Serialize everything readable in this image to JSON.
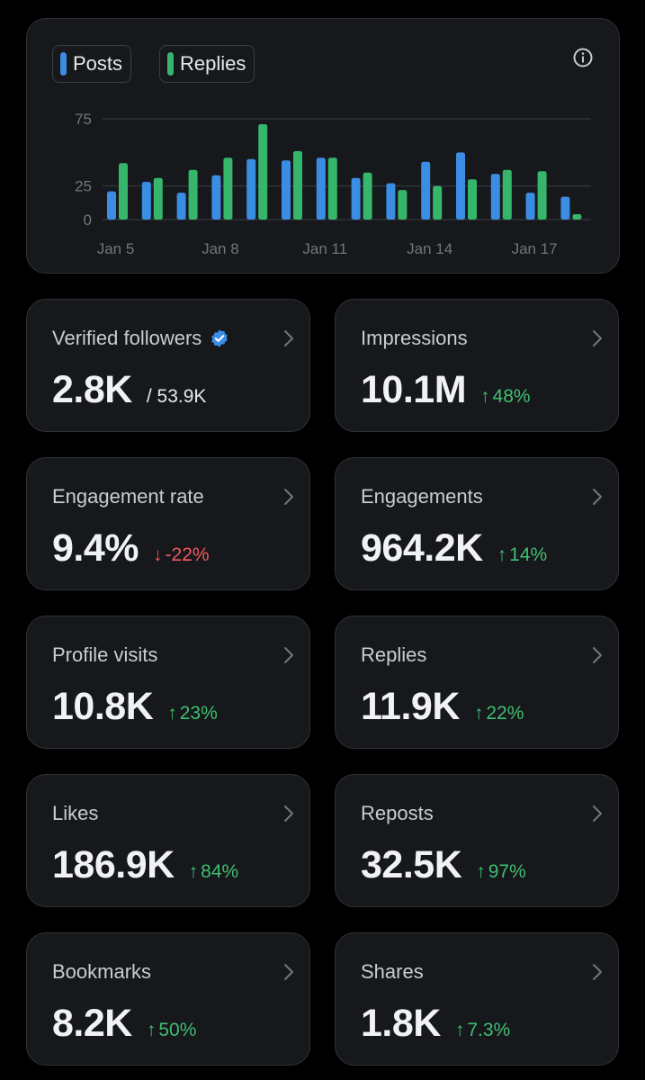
{
  "legend": {
    "posts_label": "Posts",
    "replies_label": "Replies"
  },
  "colors": {
    "posts": "#3b8de4",
    "replies": "#36b66b",
    "background": "#000000",
    "card": "#16181c",
    "positive": "#3fbf71",
    "negative": "#f4575d"
  },
  "chart_data": {
    "type": "bar",
    "categories": [
      "Jan 5",
      "Jan 6",
      "Jan 7",
      "Jan 8",
      "Jan 9",
      "Jan 10",
      "Jan 11",
      "Jan 12",
      "Jan 13",
      "Jan 14",
      "Jan 15",
      "Jan 16",
      "Jan 17",
      "Jan 18"
    ],
    "x_tick_labels": [
      "Jan 5",
      "Jan 8",
      "Jan 11",
      "Jan 14",
      "Jan 17"
    ],
    "y_ticks": [
      0,
      25,
      75
    ],
    "ylim": [
      0,
      75
    ],
    "grid": true,
    "series": [
      {
        "name": "Posts",
        "values": [
          21,
          28,
          20,
          33,
          45,
          44,
          46,
          31,
          27,
          43,
          50,
          34,
          20,
          17
        ]
      },
      {
        "name": "Replies",
        "values": [
          42,
          31,
          37,
          46,
          71,
          51,
          46,
          35,
          22,
          25,
          30,
          37,
          36,
          4
        ]
      }
    ]
  },
  "metrics": [
    {
      "label": "Verified followers",
      "value": "2.8K",
      "sub": "/ 53.9K",
      "verified_icon": "verified-badge-icon"
    },
    {
      "label": "Impressions",
      "value": "10.1M",
      "arrow": "↑",
      "delta": "48%",
      "direction": "up"
    },
    {
      "label": "Engagement rate",
      "value": "9.4%",
      "arrow": "↓",
      "delta": "-22%",
      "direction": "down"
    },
    {
      "label": "Engagements",
      "value": "964.2K",
      "arrow": "↑",
      "delta": "14%",
      "direction": "up"
    },
    {
      "label": "Profile visits",
      "value": "10.8K",
      "arrow": "↑",
      "delta": "23%",
      "direction": "up"
    },
    {
      "label": "Replies",
      "value": "11.9K",
      "arrow": "↑",
      "delta": "22%",
      "direction": "up"
    },
    {
      "label": "Likes",
      "value": "186.9K",
      "arrow": "↑",
      "delta": "84%",
      "direction": "up"
    },
    {
      "label": "Reposts",
      "value": "32.5K",
      "arrow": "↑",
      "delta": "97%",
      "direction": "up"
    },
    {
      "label": "Bookmarks",
      "value": "8.2K",
      "arrow": "↑",
      "delta": "50%",
      "direction": "up"
    },
    {
      "label": "Shares",
      "value": "1.8K",
      "arrow": "↑",
      "delta": "7.3%",
      "direction": "up"
    }
  ]
}
